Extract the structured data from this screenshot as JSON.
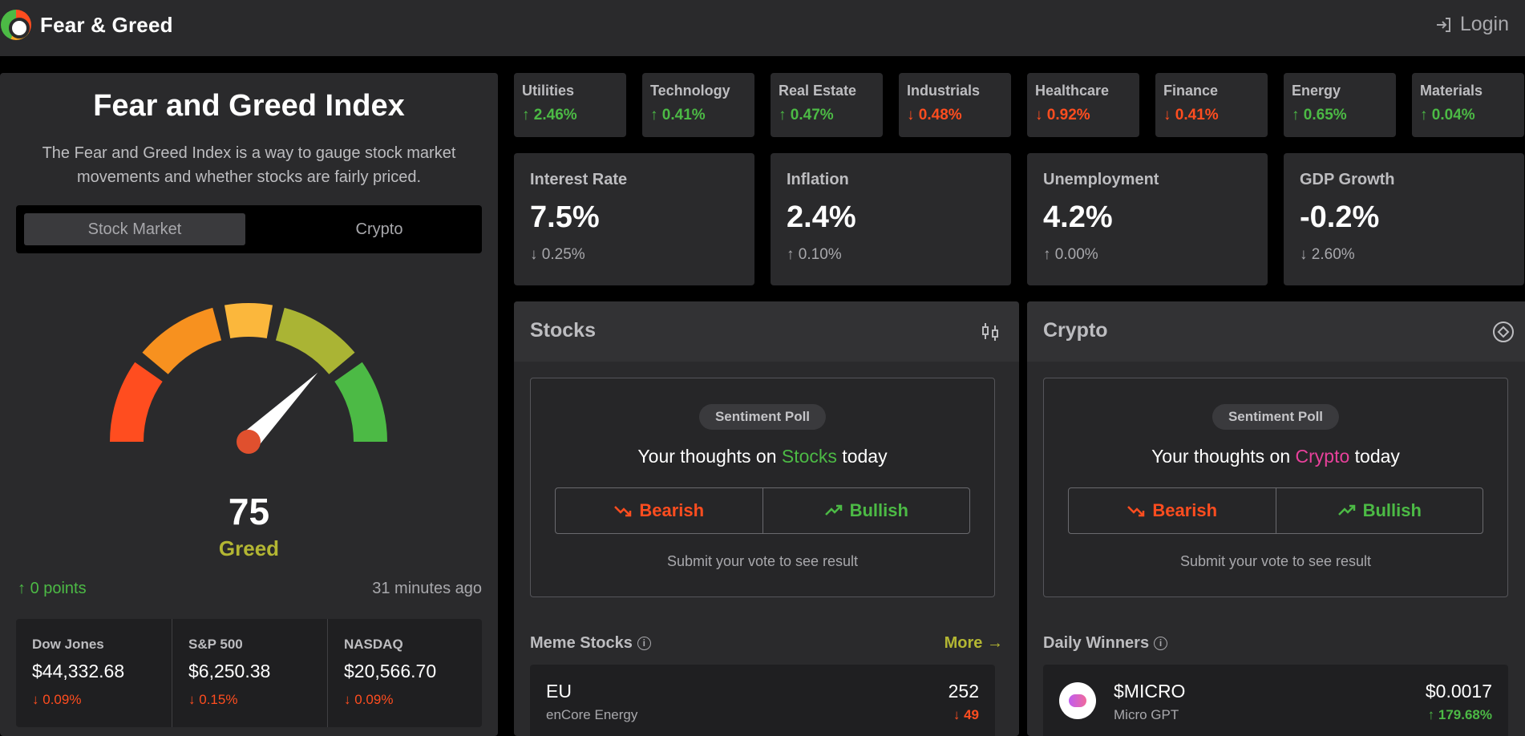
{
  "header": {
    "brand": "Fear & Greed",
    "login_label": "Login"
  },
  "left": {
    "title": "Fear and Greed Index",
    "description": "The Fear and Greed Index is a way to gauge stock market movements and whether stocks are fairly priced.",
    "tabs": [
      "Stock Market",
      "Crypto"
    ],
    "score": "75",
    "score_label": "Greed",
    "score_value": 75,
    "points": "0 points",
    "updated": "31 minutes ago",
    "indices": [
      {
        "name": "Dow Jones",
        "value": "$44,332.68",
        "change": "0.09%"
      },
      {
        "name": "S&P 500",
        "value": "$6,250.38",
        "change": "0.15%"
      },
      {
        "name": "NASDAQ",
        "value": "$20,566.70",
        "change": "0.09%"
      }
    ]
  },
  "sectors": [
    {
      "name": "Utilities",
      "change": "2.46%",
      "dir": "up"
    },
    {
      "name": "Technology",
      "change": "0.41%",
      "dir": "up"
    },
    {
      "name": "Real Estate",
      "change": "0.47%",
      "dir": "up"
    },
    {
      "name": "Industrials",
      "change": "0.48%",
      "dir": "down"
    },
    {
      "name": "Healthcare",
      "change": "0.92%",
      "dir": "down"
    },
    {
      "name": "Finance",
      "change": "0.41%",
      "dir": "down"
    },
    {
      "name": "Energy",
      "change": "0.65%",
      "dir": "up"
    },
    {
      "name": "Materials",
      "change": "0.04%",
      "dir": "up"
    }
  ],
  "macro": [
    {
      "name": "Interest Rate",
      "value": "7.5%",
      "change": "0.25%",
      "dir": "down"
    },
    {
      "name": "Inflation",
      "value": "2.4%",
      "change": "0.10%",
      "dir": "up"
    },
    {
      "name": "Unemployment",
      "value": "4.2%",
      "change": "0.00%",
      "dir": "up"
    },
    {
      "name": "GDP Growth",
      "value": "-0.2%",
      "change": "2.60%",
      "dir": "down"
    }
  ],
  "stocks": {
    "title": "Stocks",
    "poll_pill": "Sentiment Poll",
    "q_pre": "Your thoughts on ",
    "q_accent": "Stocks",
    "q_post": " today",
    "bearish": "Bearish",
    "bullish": "Bullish",
    "submit": "Submit your vote to see result",
    "list_title": "Meme Stocks",
    "more": "More",
    "row": {
      "ticker": "EU",
      "name": "enCore Energy",
      "value": "252",
      "change": "49"
    }
  },
  "crypto": {
    "title": "Crypto",
    "poll_pill": "Sentiment Poll",
    "q_pre": "Your thoughts on ",
    "q_accent": "Crypto",
    "q_post": " today",
    "bearish": "Bearish",
    "bullish": "Bullish",
    "submit": "Submit your vote to see result",
    "list_title": "Daily Winners",
    "row": {
      "ticker": "$MICRO",
      "name": "Micro GPT",
      "value": "$0.0017",
      "change": "179.68%"
    }
  },
  "colors": {
    "up": "#4cba45",
    "down": "#ff4d1f",
    "greed": "#b3b633",
    "crypto_accent": "#e8419b"
  }
}
